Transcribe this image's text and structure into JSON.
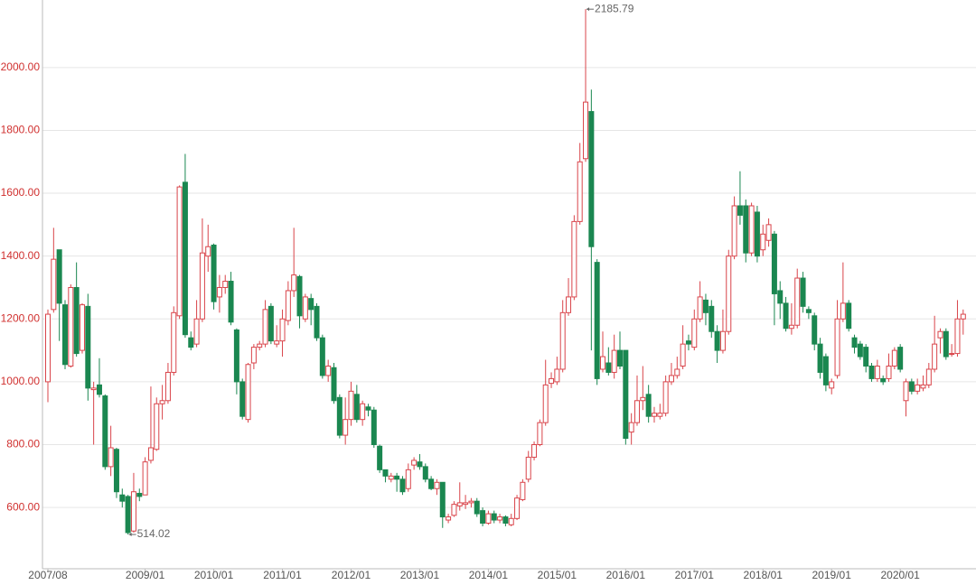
{
  "chart_data": {
    "type": "candlestick",
    "categories": [
      "2007/08",
      null,
      null,
      null,
      null,
      null,
      null,
      null,
      null,
      null,
      null,
      null,
      null,
      null,
      null,
      null,
      null,
      "2009/01",
      null,
      null,
      null,
      null,
      null,
      null,
      null,
      null,
      null,
      null,
      null,
      "2010/01",
      null,
      null,
      null,
      null,
      null,
      null,
      null,
      null,
      null,
      null,
      null,
      "2011/01",
      null,
      null,
      null,
      null,
      null,
      null,
      null,
      null,
      null,
      null,
      null,
      "2012/01",
      null,
      null,
      null,
      null,
      null,
      null,
      null,
      null,
      null,
      null,
      null,
      "2013/01",
      null,
      null,
      null,
      null,
      null,
      null,
      null,
      null,
      null,
      null,
      null,
      "2014/01",
      null,
      null,
      null,
      null,
      null,
      null,
      null,
      null,
      null,
      null,
      null,
      "2015/01",
      null,
      null,
      null,
      null,
      null,
      null,
      null,
      null,
      null,
      null,
      null,
      "2016/01",
      null,
      null,
      null,
      null,
      null,
      null,
      null,
      null,
      null,
      null,
      null,
      "2017/01",
      null,
      null,
      null,
      null,
      null,
      null,
      null,
      null,
      null,
      null,
      null,
      "2018/01",
      null,
      null,
      null,
      null,
      null,
      null,
      null,
      null,
      null,
      null,
      null,
      "2019/01",
      null,
      null,
      null,
      null,
      null,
      null,
      null,
      null,
      null,
      null,
      null,
      "2020/01",
      null,
      null,
      null,
      null,
      null,
      null,
      null,
      null,
      null,
      null,
      null
    ],
    "open": [
      1000,
      1230,
      1420,
      1245,
      1050,
      1300,
      1100,
      1240,
      975,
      990,
      955,
      730,
      785,
      640,
      635,
      525,
      645,
      640,
      750,
      785,
      930,
      940,
      1030,
      1210,
      1635,
      1140,
      1120,
      1200,
      1400,
      1435,
      1270,
      1300,
      1320,
      1165,
      1000,
      880,
      1060,
      1110,
      1120,
      1240,
      1120,
      1130,
      1195,
      1290,
      1335,
      1200,
      1265,
      1240,
      1140,
      1020,
      1045,
      950,
      830,
      880,
      960,
      880,
      920,
      910,
      795,
      720,
      690,
      700,
      690,
      660,
      735,
      745,
      730,
      690,
      660,
      680,
      560,
      575,
      605,
      610,
      615,
      620,
      590,
      550,
      580,
      560,
      570,
      545,
      565,
      625,
      690,
      760,
      800,
      870,
      995,
      1000,
      1040,
      1220,
      1270,
      1510,
      1710,
      1860,
      1380,
      1040,
      1060,
      1030,
      1100,
      1100,
      840,
      870,
      940,
      960,
      890,
      890,
      900,
      1000,
      1020,
      1050,
      1130,
      1110,
      1200,
      1260,
      1240,
      1160,
      1100,
      1160,
      1400,
      1560,
      1560,
      1410,
      1540,
      1420,
      1450,
      1470,
      1290,
      1250,
      1170,
      1180,
      1330,
      1230,
      1210,
      1120,
      1080,
      980,
      1020,
      1200,
      1250,
      1140,
      1120,
      1110,
      1050,
      1010,
      1010,
      1010,
      1050,
      1110,
      940,
      1000,
      970,
      980,
      990,
      1040,
      1140,
      1160,
      1090,
      1090,
      1200
    ],
    "high": [
      1230,
      1490,
      1420,
      1260,
      1310,
      1380,
      1250,
      1280,
      1000,
      1075,
      960,
      860,
      790,
      660,
      640,
      710,
      660,
      760,
      985,
      950,
      990,
      1060,
      1240,
      1625,
      1725,
      1160,
      1260,
      1520,
      1500,
      1440,
      1340,
      1340,
      1350,
      1170,
      1010,
      1060,
      1120,
      1130,
      1260,
      1250,
      1180,
      1230,
      1320,
      1490,
      1340,
      1280,
      1280,
      1250,
      1150,
      1070,
      1060,
      960,
      950,
      1000,
      990,
      940,
      930,
      920,
      800,
      720,
      710,
      710,
      700,
      740,
      760,
      770,
      740,
      700,
      690,
      680,
      580,
      620,
      680,
      640,
      630,
      630,
      600,
      590,
      590,
      580,
      575,
      580,
      640,
      690,
      780,
      810,
      880,
      1070,
      1030,
      1080,
      1260,
      1330,
      1530,
      1760,
      2185.79,
      1930,
      1390,
      1160,
      1110,
      1150,
      1160,
      1100,
      900,
      1020,
      1050,
      990,
      920,
      930,
      1020,
      1060,
      1080,
      1180,
      1150,
      1230,
      1320,
      1280,
      1260,
      1180,
      1230,
      1420,
      1590,
      1670,
      1580,
      1570,
      1560,
      1500,
      1520,
      1480,
      1320,
      1270,
      1250,
      1360,
      1350,
      1240,
      1220,
      1140,
      1090,
      1010,
      1260,
      1380,
      1260,
      1150,
      1130,
      1120,
      1060,
      1070,
      1020,
      1090,
      1110,
      1120,
      1010,
      1010,
      1010,
      1020,
      1060,
      1210,
      1170,
      1170,
      1120,
      1260,
      1230
    ],
    "low": [
      935,
      1220,
      1130,
      1040,
      1045,
      1080,
      1090,
      940,
      800,
      950,
      720,
      700,
      630,
      600,
      514.02,
      520,
      620,
      640,
      740,
      780,
      880,
      930,
      1020,
      1200,
      1140,
      1100,
      1110,
      1190,
      1350,
      1230,
      1220,
      1280,
      1180,
      960,
      880,
      870,
      1040,
      1100,
      1110,
      1120,
      1110,
      1080,
      1180,
      1270,
      1170,
      1190,
      1180,
      1130,
      1010,
      1000,
      930,
      820,
      800,
      860,
      870,
      860,
      890,
      790,
      710,
      680,
      680,
      650,
      640,
      650,
      720,
      720,
      680,
      655,
      640,
      535,
      550,
      570,
      590,
      595,
      600,
      570,
      540,
      545,
      550,
      550,
      540,
      540,
      560,
      620,
      680,
      750,
      795,
      860,
      980,
      990,
      1030,
      1210,
      1260,
      1500,
      1700,
      1100,
      990,
      1030,
      1020,
      1010,
      1040,
      800,
      800,
      860,
      910,
      870,
      870,
      880,
      890,
      990,
      1010,
      1040,
      1100,
      1100,
      1190,
      1180,
      1140,
      1060,
      1090,
      1150,
      1390,
      1500,
      1380,
      1400,
      1380,
      1400,
      1430,
      1180,
      1200,
      1160,
      1150,
      1170,
      1220,
      1200,
      1100,
      1010,
      970,
      960,
      1010,
      1190,
      1160,
      1090,
      1070,
      1030,
      1000,
      1000,
      990,
      1000,
      1040,
      1030,
      890,
      960,
      960,
      970,
      980,
      1030,
      1090,
      1070,
      1080,
      1080,
      1150
    ],
    "close": [
      1215,
      1390,
      1250,
      1055,
      1300,
      1090,
      1245,
      980,
      980,
      960,
      730,
      790,
      650,
      620,
      520,
      650,
      635,
      745,
      790,
      930,
      940,
      1030,
      1220,
      1620,
      1150,
      1110,
      1200,
      1410,
      1430,
      1255,
      1300,
      1320,
      1190,
      1000,
      890,
      1055,
      1110,
      1120,
      1230,
      1130,
      1130,
      1200,
      1290,
      1340,
      1210,
      1270,
      1230,
      1140,
      1020,
      1050,
      940,
      830,
      880,
      970,
      880,
      930,
      910,
      800,
      720,
      700,
      700,
      690,
      650,
      720,
      750,
      730,
      690,
      660,
      680,
      570,
      570,
      610,
      615,
      615,
      620,
      580,
      550,
      580,
      560,
      570,
      550,
      565,
      630,
      680,
      760,
      800,
      870,
      990,
      1010,
      1040,
      1220,
      1270,
      1510,
      1700,
      1890,
      1430,
      1010,
      1080,
      1030,
      1100,
      1050,
      820,
      870,
      940,
      950,
      890,
      900,
      900,
      1000,
      1020,
      1040,
      1120,
      1120,
      1200,
      1270,
      1220,
      1160,
      1100,
      1160,
      1400,
      1560,
      1530,
      1410,
      1560,
      1400,
      1470,
      1500,
      1280,
      1250,
      1170,
      1180,
      1330,
      1240,
      1220,
      1120,
      1030,
      990,
      1000,
      1200,
      1250,
      1170,
      1110,
      1080,
      1050,
      1010,
      1050,
      1000,
      1050,
      1100,
      1040,
      1000,
      970,
      990,
      990,
      1040,
      1120,
      1160,
      1080,
      1090,
      1200,
      1215
    ],
    "up_color": "#d9444a",
    "down_color": "#1a8750",
    "tick_color": "#d0302f",
    "ylim": [
      405,
      2215
    ],
    "yticks": [
      {
        "value": 600,
        "label": "600.00"
      },
      {
        "value": 800,
        "label": "800.00"
      },
      {
        "value": 1000,
        "label": "1000.00"
      },
      {
        "value": 1200,
        "label": "1200.00"
      },
      {
        "value": 1400,
        "label": "1400.00"
      },
      {
        "value": 1600,
        "label": "1600.00"
      },
      {
        "value": 1800,
        "label": "1800.00"
      },
      {
        "value": 2000,
        "label": "2000.00"
      }
    ],
    "grid": true,
    "annotations": [
      {
        "value": 2185.79,
        "label": "2185.79"
      },
      {
        "value": 514.02,
        "label": "514.02"
      }
    ]
  }
}
